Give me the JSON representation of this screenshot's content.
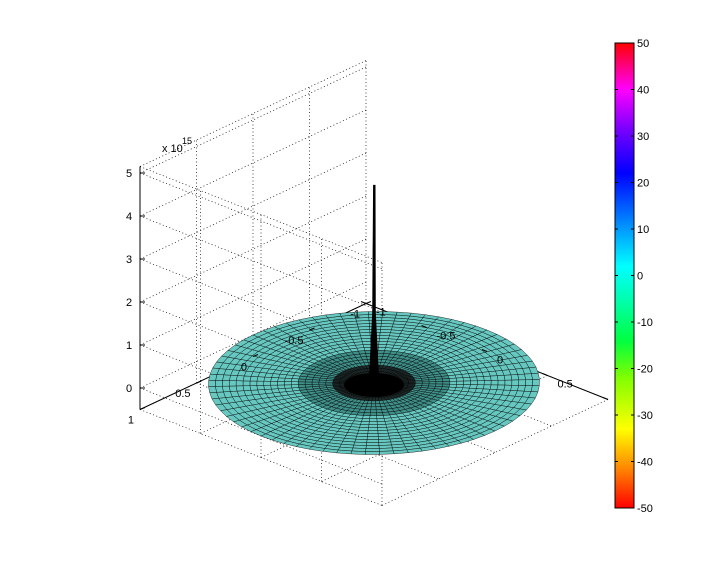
{
  "chart_data": {
    "type": "surface",
    "title": "",
    "xlabel": "",
    "ylabel": "",
    "zlabel": "",
    "x_ticks": [
      "-1",
      "-0.5",
      "0",
      "0.5",
      "1"
    ],
    "y_ticks": [
      "-1",
      "-0.5",
      "0",
      "0.5",
      "1"
    ],
    "z_ticks": [
      "0",
      "1",
      "2",
      "3",
      "4",
      "5"
    ],
    "z_multiplier": "x 10",
    "z_exponent": "15",
    "x_range": [
      -1,
      1
    ],
    "y_range": [
      -1,
      1
    ],
    "z_range": [
      -500000000000000.0,
      5000000000000000.0
    ],
    "surface": {
      "shape": "disk",
      "radius": 1,
      "base_z": 0,
      "spike": {
        "x": 0,
        "y": 0,
        "peak_z": 4600000000000000.0
      },
      "face_color": "#66c8c0",
      "edge_color": "#000000"
    },
    "grid": true,
    "colorbar": {
      "position": "right",
      "range": [
        -50,
        50
      ],
      "ticks": [
        "50",
        "40",
        "30",
        "20",
        "10",
        "0",
        "-10",
        "-20",
        "-30",
        "-40",
        "-50"
      ],
      "colormap": "hsv"
    }
  }
}
